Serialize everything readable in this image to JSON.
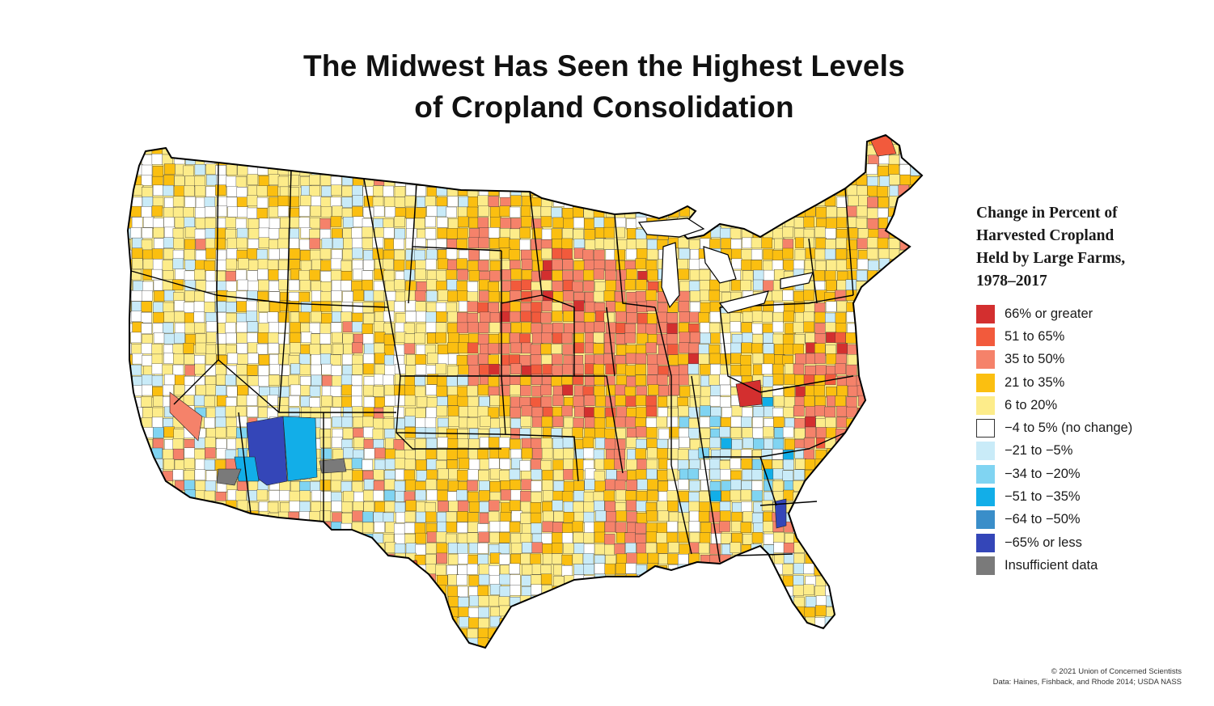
{
  "title": {
    "line1": "The Midwest Has Seen the Highest Levels",
    "line2": "of Cropland Consolidation"
  },
  "legend": {
    "title_lines": [
      "Change in Percent of",
      "Harvested Cropland",
      "Held by Large Farms,",
      "1978–2017"
    ],
    "items": [
      {
        "label": "66% or greater",
        "color": "#d32f2f"
      },
      {
        "label": "51 to 65%",
        "color": "#f25a3c"
      },
      {
        "label": "35 to 50%",
        "color": "#f5826a"
      },
      {
        "label": "21 to 35%",
        "color": "#fbbf10"
      },
      {
        "label": "6 to 20%",
        "color": "#fdec8a"
      },
      {
        "label": "−4 to 5% (no change)",
        "color": "#ffffff"
      },
      {
        "label": "−21 to −5%",
        "color": "#c9ebf8"
      },
      {
        "label": "−34 to −20%",
        "color": "#80d4f2"
      },
      {
        "label": "−51 to −35%",
        "color": "#12aee8"
      },
      {
        "label": "−64 to −50%",
        "color": "#3a8ec9"
      },
      {
        "label": "−65% or less",
        "color": "#3446b8"
      },
      {
        "label": "Insufficient data",
        "color": "#7a7a7a"
      }
    ]
  },
  "credit": {
    "line1": "© 2021 Union of Concerned Scientists",
    "line2": "Data: Haines, Fishback, and Rhode 2014; USDA NASS"
  }
}
